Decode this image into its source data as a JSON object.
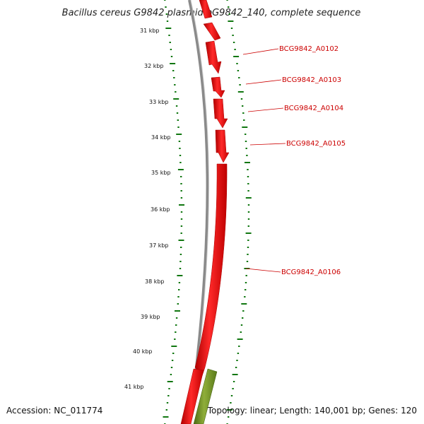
{
  "title": "Bacillus cereus G9842 plasmid pG9842_140, complete sequence",
  "footer": {
    "accession": "Accession: NC_011774",
    "summary": "Topology: linear; Length: 140,001 bp; Genes: 120"
  },
  "colors": {
    "backbone": "#8a8a8a",
    "forward_gene": "#ee0000",
    "reverse_gene": "#6b8e23",
    "ticks": "#117711",
    "label": "#cc0000"
  },
  "scale_labels": [
    "31 kbp",
    "32 kbp",
    "33 kbp",
    "34 kbp",
    "35 kbp",
    "36 kbp",
    "37 kbp",
    "38 kbp",
    "39 kbp",
    "40 kbp",
    "41 kbp"
  ],
  "gene_labels": [
    {
      "name": "BCG9842_A0102"
    },
    {
      "name": "BCG9842_A0103"
    },
    {
      "name": "BCG9842_A0104"
    },
    {
      "name": "BCG9842_A0105"
    },
    {
      "name": "BCG9842_A0106"
    }
  ]
}
